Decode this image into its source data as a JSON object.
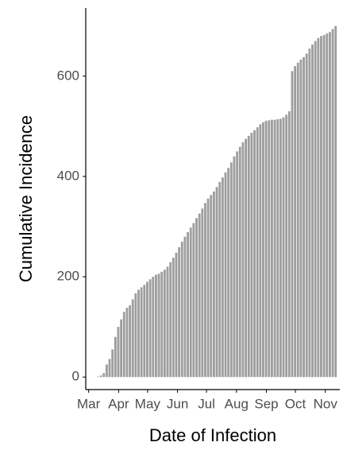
{
  "chart_data": {
    "type": "bar",
    "xlabel": "Date of Infection",
    "ylabel": "Cumulative Incidence",
    "color": "#9e9e9e",
    "x": [
      10,
      13,
      16,
      19,
      22,
      25,
      28,
      31,
      34,
      37,
      40,
      43,
      46,
      49,
      52,
      55,
      58,
      61,
      64,
      67,
      70,
      73,
      76,
      79,
      82,
      85,
      88,
      91,
      94,
      97,
      100,
      103,
      106,
      109,
      112,
      115,
      118,
      121,
      124,
      127,
      130,
      133,
      136,
      139,
      142,
      145,
      148,
      151,
      154,
      157,
      160,
      163,
      166,
      169,
      172,
      175,
      178,
      181,
      184,
      187,
      190,
      193,
      196,
      199,
      202,
      205,
      208,
      211,
      214,
      217,
      220,
      223,
      226,
      229,
      232,
      235,
      238,
      241,
      244,
      247,
      250,
      253,
      256
    ],
    "values": [
      1,
      3,
      8,
      25,
      36,
      55,
      80,
      100,
      115,
      130,
      138,
      143,
      155,
      167,
      174,
      179,
      184,
      190,
      195,
      200,
      204,
      206,
      210,
      214,
      220,
      229,
      238,
      248,
      259,
      270,
      280,
      289,
      298,
      307,
      317,
      326,
      336,
      347,
      356,
      363,
      370,
      379,
      389,
      398,
      408,
      417,
      428,
      440,
      450,
      459,
      468,
      475,
      481,
      487,
      492,
      498,
      504,
      508,
      511,
      512,
      513,
      513,
      514,
      515,
      518,
      523,
      530,
      610,
      620,
      627,
      633,
      638,
      645,
      655,
      663,
      670,
      676,
      680,
      682,
      685,
      688,
      694,
      700
    ],
    "xlim": [
      -3,
      260
    ],
    "ylim": [
      -25,
      736
    ],
    "yticks": [
      0,
      200,
      400,
      600
    ],
    "xticks": [
      {
        "value": 0,
        "label": "Mar"
      },
      {
        "value": 31,
        "label": "Apr"
      },
      {
        "value": 61,
        "label": "May"
      },
      {
        "value": 92,
        "label": "Jun"
      },
      {
        "value": 122,
        "label": "Jul"
      },
      {
        "value": 153,
        "label": "Aug"
      },
      {
        "value": 184,
        "label": "Sep"
      },
      {
        "value": 214,
        "label": "Oct"
      },
      {
        "value": 245,
        "label": "Nov"
      }
    ]
  }
}
